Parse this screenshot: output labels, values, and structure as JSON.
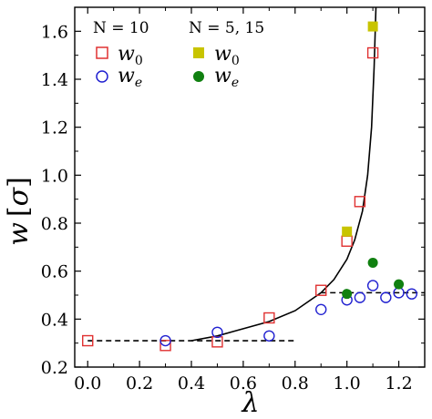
{
  "chart_data": {
    "type": "scatter",
    "xlabel": "λ",
    "ylabel_parts": [
      "w",
      "[",
      "σ",
      "]"
    ],
    "xlim": [
      -0.05,
      1.3
    ],
    "ylim": [
      0.2,
      1.7
    ],
    "xticks": [
      "0.0",
      "0.2",
      "0.4",
      "0.6",
      "0.8",
      "1.0",
      "1.2"
    ],
    "yticks": [
      "0.2",
      "0.4",
      "0.6",
      "0.8",
      "1.0",
      "1.2",
      "1.4",
      "1.6"
    ],
    "grid": false,
    "legend_position": "top-left",
    "legend": {
      "group1_title": "N = 10",
      "group2_title": "N = 5, 15",
      "w0_label": "w",
      "w0_sub": "0",
      "we_label": "w",
      "we_sub": "e"
    },
    "colors": {
      "w0_n10": "#e03030",
      "we_n10": "#2020d0",
      "w0_n515": "#c8c400",
      "we_n515": "#108010",
      "curve": "#000000",
      "dashed": "#000000"
    },
    "series": [
      {
        "group": "N=10",
        "symbol": "w0",
        "marker": "open-square",
        "points": [
          [
            0.0,
            0.31
          ],
          [
            0.3,
            0.29
          ],
          [
            0.5,
            0.305
          ],
          [
            0.7,
            0.405
          ],
          [
            0.9,
            0.52
          ],
          [
            1.0,
            0.725
          ],
          [
            1.05,
            0.89
          ],
          [
            1.1,
            1.51
          ]
        ]
      },
      {
        "group": "N=10",
        "symbol": "we",
        "marker": "open-circle",
        "points": [
          [
            0.3,
            0.31
          ],
          [
            0.5,
            0.345
          ],
          [
            0.7,
            0.33
          ],
          [
            0.9,
            0.44
          ],
          [
            1.0,
            0.48
          ],
          [
            1.05,
            0.49
          ],
          [
            1.1,
            0.54
          ],
          [
            1.15,
            0.49
          ],
          [
            1.2,
            0.51
          ],
          [
            1.25,
            0.505
          ]
        ]
      },
      {
        "group": "N=5,15",
        "symbol": "w0",
        "marker": "filled-square",
        "points": [
          [
            1.0,
            0.765
          ],
          [
            1.1,
            1.62
          ]
        ]
      },
      {
        "group": "N=5,15",
        "symbol": "we",
        "marker": "filled-circle",
        "points": [
          [
            1.0,
            0.505
          ],
          [
            1.1,
            0.635
          ],
          [
            1.2,
            0.545
          ]
        ]
      }
    ],
    "fit_curve": {
      "style": "solid",
      "points": [
        [
          0.4,
          0.31
        ],
        [
          0.5,
          0.33
        ],
        [
          0.6,
          0.36
        ],
        [
          0.7,
          0.39
        ],
        [
          0.8,
          0.435
        ],
        [
          0.9,
          0.51
        ],
        [
          0.95,
          0.565
        ],
        [
          1.0,
          0.65
        ],
        [
          1.03,
          0.73
        ],
        [
          1.06,
          0.85
        ],
        [
          1.08,
          1.0
        ],
        [
          1.095,
          1.2
        ],
        [
          1.105,
          1.45
        ],
        [
          1.112,
          1.7
        ]
      ]
    },
    "dashed_lines": [
      {
        "y": 0.31,
        "x_range": [
          0.0,
          0.8
        ]
      },
      {
        "y": 0.51,
        "x_range": [
          0.9,
          1.3
        ]
      }
    ]
  }
}
